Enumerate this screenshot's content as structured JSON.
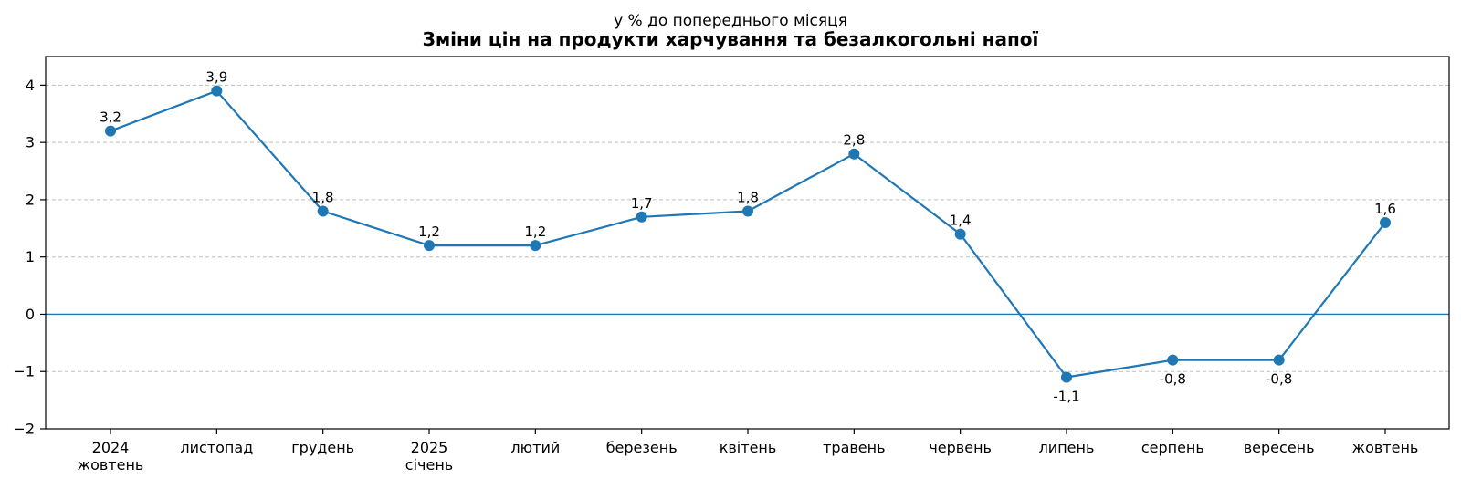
{
  "chart_data": {
    "type": "line",
    "subtitle": "у % до попереднього місяця",
    "title": "Зміни цін на продукти харчування та безалкогольні напої",
    "xlabel": "",
    "ylabel": "",
    "categories": [
      [
        "2024",
        "жовтень"
      ],
      [
        "листопад"
      ],
      [
        "грудень"
      ],
      [
        "2025",
        "січень"
      ],
      [
        "лютий"
      ],
      [
        "березень"
      ],
      [
        "квітень"
      ],
      [
        "травень"
      ],
      [
        "червень"
      ],
      [
        "липень"
      ],
      [
        "серпень"
      ],
      [
        "вересень"
      ],
      [
        "жовтень"
      ]
    ],
    "values": [
      3.2,
      3.9,
      1.8,
      1.2,
      1.2,
      1.7,
      1.8,
      2.8,
      1.4,
      -1.1,
      -0.8,
      -0.8,
      1.6
    ],
    "data_labels": [
      "3,2",
      "3,9",
      "1,8",
      "1,2",
      "1,2",
      "1,7",
      "1,8",
      "2,8",
      "1,4",
      "-1,1",
      "-0,8",
      "-0,8",
      "1,6"
    ],
    "ylim": [
      -2,
      4.5
    ],
    "yticks": [
      -2,
      -1,
      0,
      1,
      2,
      3,
      4
    ],
    "ytick_labels": [
      "−2",
      "−1",
      "0",
      "1",
      "2",
      "3",
      "4"
    ],
    "grid": "horizontal dashed",
    "zero_line": true,
    "colors": {
      "line": "#1f77b4",
      "grid": "#bfbfbf",
      "axis": "#000000"
    }
  }
}
